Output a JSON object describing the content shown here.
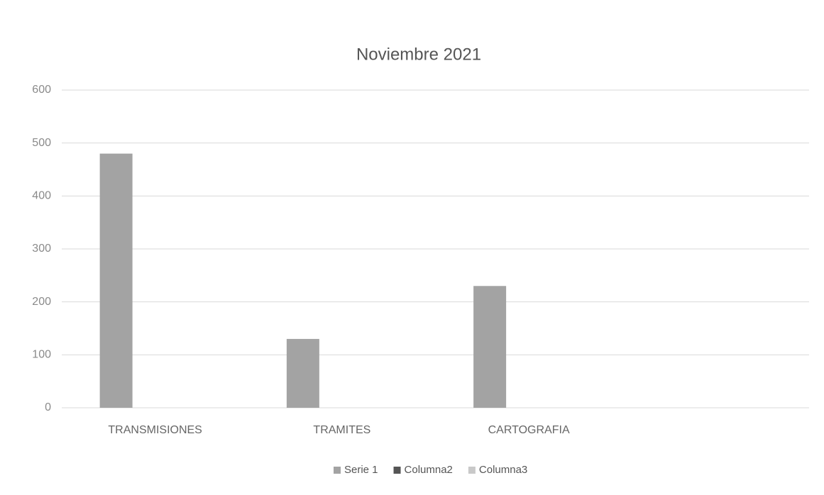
{
  "chart_data": {
    "type": "bar",
    "title": "Noviembre 2021",
    "categories": [
      "TRANSMISIONES",
      "TRAMITES",
      "CARTOGRAFIA",
      null
    ],
    "series": [
      {
        "name": "Serie 1",
        "color": "#a3a3a3",
        "values": [
          480,
          130,
          230,
          null
        ]
      },
      {
        "name": "Columna2",
        "color": "#555555",
        "values": [
          null,
          null,
          null,
          null
        ]
      },
      {
        "name": "Columna3",
        "color": "#c9c9c9",
        "values": [
          null,
          null,
          null,
          null
        ]
      }
    ],
    "ylim": [
      0,
      600
    ],
    "yticks": [
      0,
      100,
      200,
      300,
      400,
      500,
      600
    ],
    "grid": true,
    "legend": "bottom"
  }
}
